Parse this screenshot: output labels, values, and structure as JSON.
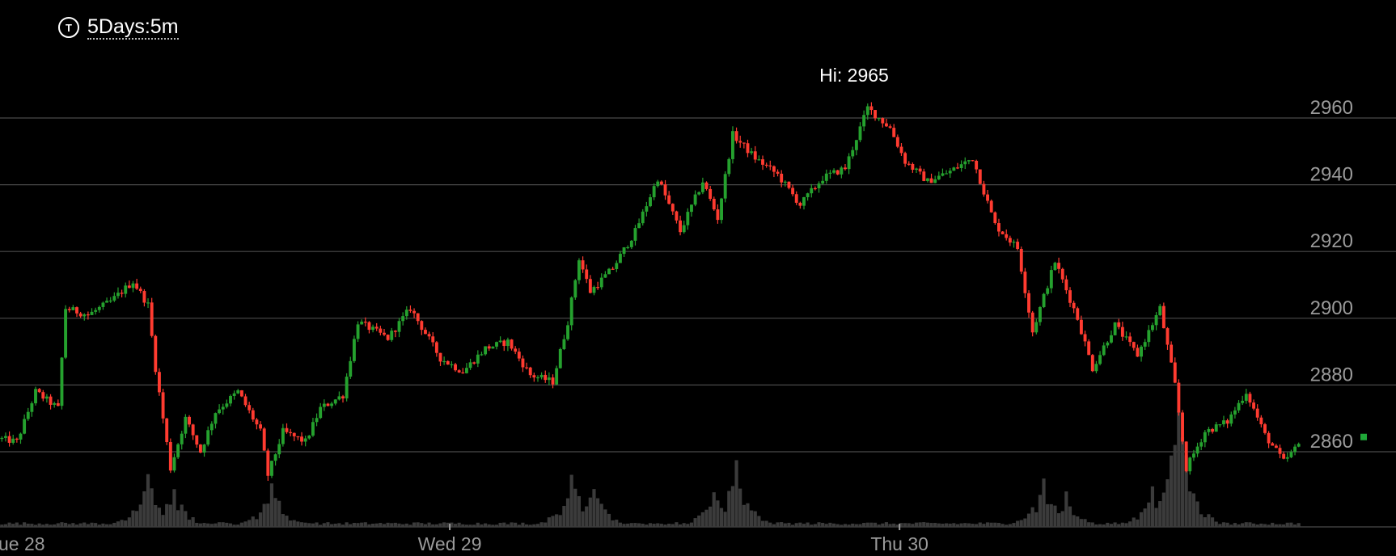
{
  "toolbar": {
    "timeframe_icon": "T",
    "timeframe_label": "5Days:5m"
  },
  "chart_data": {
    "type": "candlestick",
    "high_label": "Hi: 2965",
    "high_value": 2965,
    "ylim": [
      2835,
      2975
    ],
    "y_ticks": [
      {
        "value": 2960,
        "label": "2960"
      },
      {
        "value": 2940,
        "label": "2940"
      },
      {
        "value": 2920,
        "label": "2920"
      },
      {
        "value": 2900,
        "label": "2900"
      },
      {
        "value": 2880,
        "label": "2880"
      },
      {
        "value": 2860,
        "label": "2860"
      }
    ],
    "x_ticks": [
      {
        "index": 0,
        "label": "ue 28"
      },
      {
        "index": 120,
        "label": "Wed 29"
      },
      {
        "index": 240,
        "label": "Thu 30"
      }
    ],
    "n_candles": 347,
    "price_path": [
      {
        "i": 0,
        "p": 2864
      },
      {
        "i": 5,
        "p": 2863
      },
      {
        "i": 10,
        "p": 2878
      },
      {
        "i": 16,
        "p": 2873
      },
      {
        "i": 18,
        "p": 2903
      },
      {
        "i": 24,
        "p": 2901
      },
      {
        "i": 30,
        "p": 2905
      },
      {
        "i": 36,
        "p": 2911
      },
      {
        "i": 40,
        "p": 2904
      },
      {
        "i": 42,
        "p": 2885
      },
      {
        "i": 46,
        "p": 2855
      },
      {
        "i": 50,
        "p": 2870
      },
      {
        "i": 54,
        "p": 2860
      },
      {
        "i": 58,
        "p": 2872
      },
      {
        "i": 64,
        "p": 2878
      },
      {
        "i": 70,
        "p": 2866
      },
      {
        "i": 72,
        "p": 2853
      },
      {
        "i": 76,
        "p": 2866
      },
      {
        "i": 82,
        "p": 2863
      },
      {
        "i": 86,
        "p": 2873
      },
      {
        "i": 92,
        "p": 2877
      },
      {
        "i": 96,
        "p": 2899
      },
      {
        "i": 104,
        "p": 2894
      },
      {
        "i": 110,
        "p": 2903
      },
      {
        "i": 118,
        "p": 2888
      },
      {
        "i": 124,
        "p": 2884
      },
      {
        "i": 130,
        "p": 2891
      },
      {
        "i": 136,
        "p": 2893
      },
      {
        "i": 142,
        "p": 2883
      },
      {
        "i": 148,
        "p": 2881
      },
      {
        "i": 152,
        "p": 2899
      },
      {
        "i": 155,
        "p": 2918
      },
      {
        "i": 158,
        "p": 2908
      },
      {
        "i": 164,
        "p": 2915
      },
      {
        "i": 170,
        "p": 2926
      },
      {
        "i": 176,
        "p": 2942
      },
      {
        "i": 182,
        "p": 2926
      },
      {
        "i": 188,
        "p": 2941
      },
      {
        "i": 192,
        "p": 2930
      },
      {
        "i": 196,
        "p": 2955
      },
      {
        "i": 202,
        "p": 2948
      },
      {
        "i": 208,
        "p": 2943
      },
      {
        "i": 214,
        "p": 2934
      },
      {
        "i": 220,
        "p": 2942
      },
      {
        "i": 226,
        "p": 2945
      },
      {
        "i": 232,
        "p": 2963
      },
      {
        "i": 238,
        "p": 2957
      },
      {
        "i": 242,
        "p": 2947
      },
      {
        "i": 248,
        "p": 2941
      },
      {
        "i": 254,
        "p": 2944
      },
      {
        "i": 260,
        "p": 2948
      },
      {
        "i": 266,
        "p": 2928
      },
      {
        "i": 272,
        "p": 2921
      },
      {
        "i": 276,
        "p": 2896
      },
      {
        "i": 282,
        "p": 2917
      },
      {
        "i": 288,
        "p": 2900
      },
      {
        "i": 292,
        "p": 2885
      },
      {
        "i": 298,
        "p": 2898
      },
      {
        "i": 304,
        "p": 2889
      },
      {
        "i": 310,
        "p": 2903
      },
      {
        "i": 314,
        "p": 2880
      },
      {
        "i": 317,
        "p": 2855
      },
      {
        "i": 322,
        "p": 2866
      },
      {
        "i": 328,
        "p": 2869
      },
      {
        "i": 333,
        "p": 2878
      },
      {
        "i": 338,
        "p": 2865
      },
      {
        "i": 343,
        "p": 2857
      },
      {
        "i": 347,
        "p": 2862
      }
    ],
    "volume_spikes": [
      {
        "i": 39,
        "h": 0.8
      },
      {
        "i": 46,
        "h": 0.6
      },
      {
        "i": 72,
        "h": 0.7
      },
      {
        "i": 152,
        "h": 0.8
      },
      {
        "i": 158,
        "h": 0.6
      },
      {
        "i": 190,
        "h": 0.55
      },
      {
        "i": 196,
        "h": 1.0
      },
      {
        "i": 278,
        "h": 0.75
      },
      {
        "i": 284,
        "h": 0.55
      },
      {
        "i": 307,
        "h": 0.65
      },
      {
        "i": 314,
        "h": 1.85
      }
    ],
    "last_price_marker": 2862,
    "colors": {
      "up": "#25a12e",
      "down": "#ff3b30",
      "volume": "#3b3b3b",
      "grid": "#4a4a4a",
      "axis_text": "#9a9a9a",
      "marker": "#1fa838"
    }
  }
}
